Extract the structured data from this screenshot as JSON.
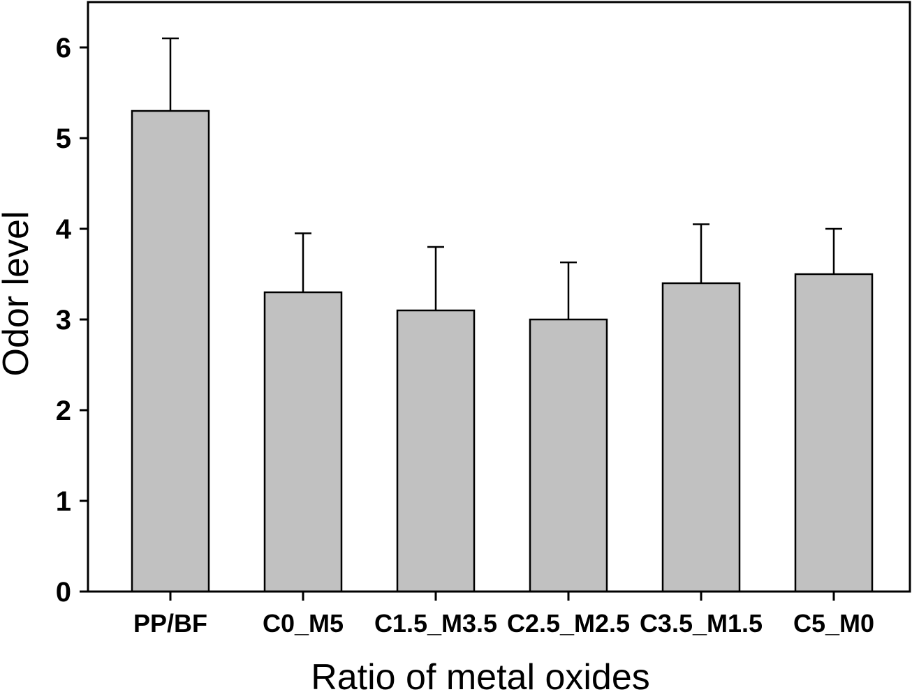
{
  "chart_data": {
    "type": "bar",
    "xlabel": "Ratio of metal oxides",
    "ylabel": "Odor level",
    "categories": [
      "PP/BF",
      "C0_M5",
      "C1.5_M3.5",
      "C2.5_M2.5",
      "C3.5_M1.5",
      "C5_M0"
    ],
    "values": [
      5.3,
      3.3,
      3.1,
      3.0,
      3.4,
      3.5
    ],
    "errors_upper": [
      0.8,
      0.65,
      0.7,
      0.63,
      0.65,
      0.5
    ],
    "ylim": [
      0,
      6.5
    ],
    "yticks": [
      0,
      1,
      2,
      3,
      4,
      5,
      6
    ],
    "grid": false,
    "legend": "none",
    "frame": "full-box",
    "bar_fill": "#c1c1c1",
    "bar_stroke": "#000000",
    "axis_color": "#000000",
    "background": "#ffffff",
    "error_bar_style": "upper-with-cap"
  }
}
